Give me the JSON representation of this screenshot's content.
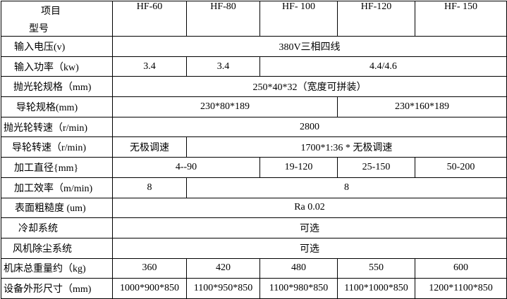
{
  "table": {
    "corner": {
      "line1": "项目",
      "line2": "型号"
    },
    "models": [
      "HF-60",
      "HF-80",
      "HF- 100",
      "HF-120",
      "HF- 150"
    ],
    "rows": [
      {
        "label": "输入电压(v)",
        "indent": 18,
        "cells": [
          {
            "text": "380V三相四线",
            "span": 5
          }
        ]
      },
      {
        "label": "输入功率（kw)",
        "indent": 18,
        "cells": [
          {
            "text": "3.4",
            "span": 1
          },
          {
            "text": "3.4",
            "span": 1
          },
          {
            "text": "4.4/4.6",
            "span": 3
          }
        ]
      },
      {
        "label": "抛光轮规格（mm)",
        "indent": 17,
        "cells": [
          {
            "text": "250*40*32（宽度可拼装）",
            "span": 5
          }
        ]
      },
      {
        "label": "导轮规格(mm)",
        "indent": 21,
        "cells": [
          {
            "text": "230*80*189",
            "span": 3
          },
          {
            "text": "230*160*189",
            "span": 2
          }
        ]
      },
      {
        "label": "抛光轮转速（r/min)",
        "indent": 3,
        "cells": [
          {
            "text": "2800",
            "span": 5
          }
        ]
      },
      {
        "label": "导轮转速（r/min)",
        "indent": 15,
        "cells": [
          {
            "text": "无极调速",
            "span": 1
          },
          {
            "text": "1700*1:36 * 无极调速",
            "span": 4
          }
        ]
      },
      {
        "label": "加工直径{mm}",
        "indent": 18,
        "cells": [
          {
            "text": "4--90",
            "span": 2
          },
          {
            "text": "19-120",
            "span": 1
          },
          {
            "text": "25-150",
            "span": 1
          },
          {
            "text": "50-200",
            "span": 1
          }
        ]
      },
      {
        "label": "加工效率（m/min)",
        "indent": 18,
        "cells": [
          {
            "text": "8",
            "span": 1
          },
          {
            "text": "8",
            "span": 4
          }
        ]
      },
      {
        "label": "表面粗糙度 (um)",
        "indent": 19,
        "cells": [
          {
            "text": "Ra 0.02",
            "span": 5
          }
        ]
      },
      {
        "label": "冷却系统",
        "indent": 24,
        "cells": [
          {
            "text": "可选",
            "span": 5
          }
        ]
      },
      {
        "label": "风机除尘系统",
        "indent": 16,
        "cells": [
          {
            "text": "可选",
            "span": 5
          }
        ]
      },
      {
        "label": "机床总重量约（kg)",
        "indent": 3,
        "cells": [
          {
            "text": "360",
            "span": 1
          },
          {
            "text": "420",
            "span": 1
          },
          {
            "text": "480",
            "span": 1
          },
          {
            "text": "550",
            "span": 1
          },
          {
            "text": "600",
            "span": 1
          }
        ]
      },
      {
        "label": "设备外形尺寸（mm)",
        "indent": 3,
        "cells": [
          {
            "text": "1000*900*850",
            "span": 1
          },
          {
            "text": "1100*950*850",
            "span": 1
          },
          {
            "text": "1100*980*850",
            "span": 1
          },
          {
            "text": "1100*1000*850",
            "span": 1
          },
          {
            "text": "1200*1100*850",
            "span": 1
          }
        ]
      }
    ],
    "colors": {
      "border": "#000000",
      "background": "#ffffff",
      "text": "#000000"
    }
  }
}
